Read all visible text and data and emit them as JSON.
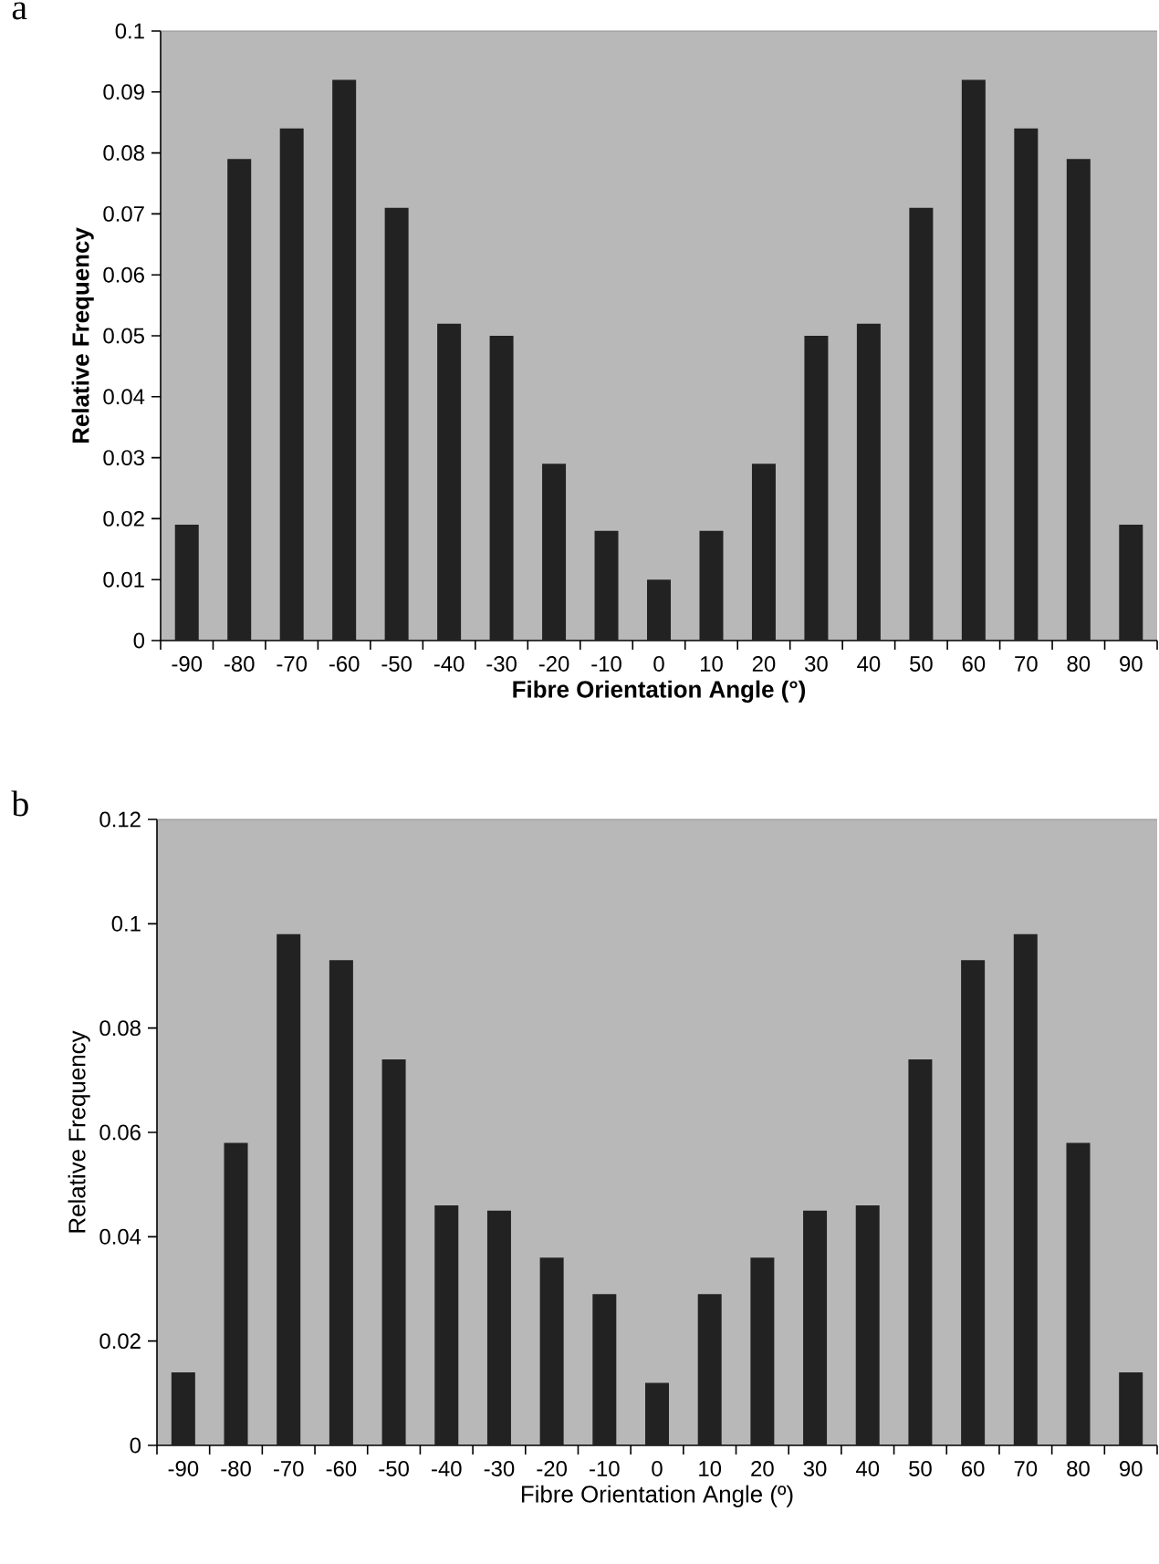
{
  "chart_data": [
    {
      "type": "bar",
      "annotations": [
        "a"
      ],
      "xlabel": "Fibre Orientation Angle (°)",
      "ylabel": "Relative Frequency",
      "categories": [
        "-90",
        "-80",
        "-70",
        "-60",
        "-50",
        "-40",
        "-30",
        "-20",
        "-10",
        "0",
        "10",
        "20",
        "30",
        "40",
        "50",
        "60",
        "70",
        "80",
        "90"
      ],
      "values": [
        0.019,
        0.079,
        0.084,
        0.092,
        0.071,
        0.052,
        0.05,
        0.029,
        0.018,
        0.01,
        0.018,
        0.029,
        0.05,
        0.052,
        0.071,
        0.092,
        0.084,
        0.079,
        0.019
      ],
      "color": "#222222",
      "ylim": [
        0,
        0.1
      ],
      "yticks": [
        0,
        0.01,
        0.02,
        0.03,
        0.04,
        0.05,
        0.06,
        0.07,
        0.08,
        0.09,
        0.1
      ]
    },
    {
      "type": "bar",
      "annotations": [
        "b"
      ],
      "xlabel": "Fibre Orientation Angle (º)",
      "ylabel": "Relative Frequency",
      "categories": [
        "-90",
        "-80",
        "-70",
        "-60",
        "-50",
        "-40",
        "-30",
        "-20",
        "-10",
        "0",
        "10",
        "20",
        "30",
        "40",
        "50",
        "60",
        "70",
        "80",
        "90"
      ],
      "values": [
        0.014,
        0.058,
        0.098,
        0.093,
        0.074,
        0.046,
        0.045,
        0.036,
        0.029,
        0.012,
        0.029,
        0.036,
        0.045,
        0.046,
        0.074,
        0.093,
        0.098,
        0.058,
        0.014
      ],
      "color": "#222222",
      "ylim": [
        0,
        0.12
      ],
      "yticks": [
        0,
        0.02,
        0.04,
        0.06,
        0.08,
        0.1,
        0.12
      ]
    }
  ]
}
